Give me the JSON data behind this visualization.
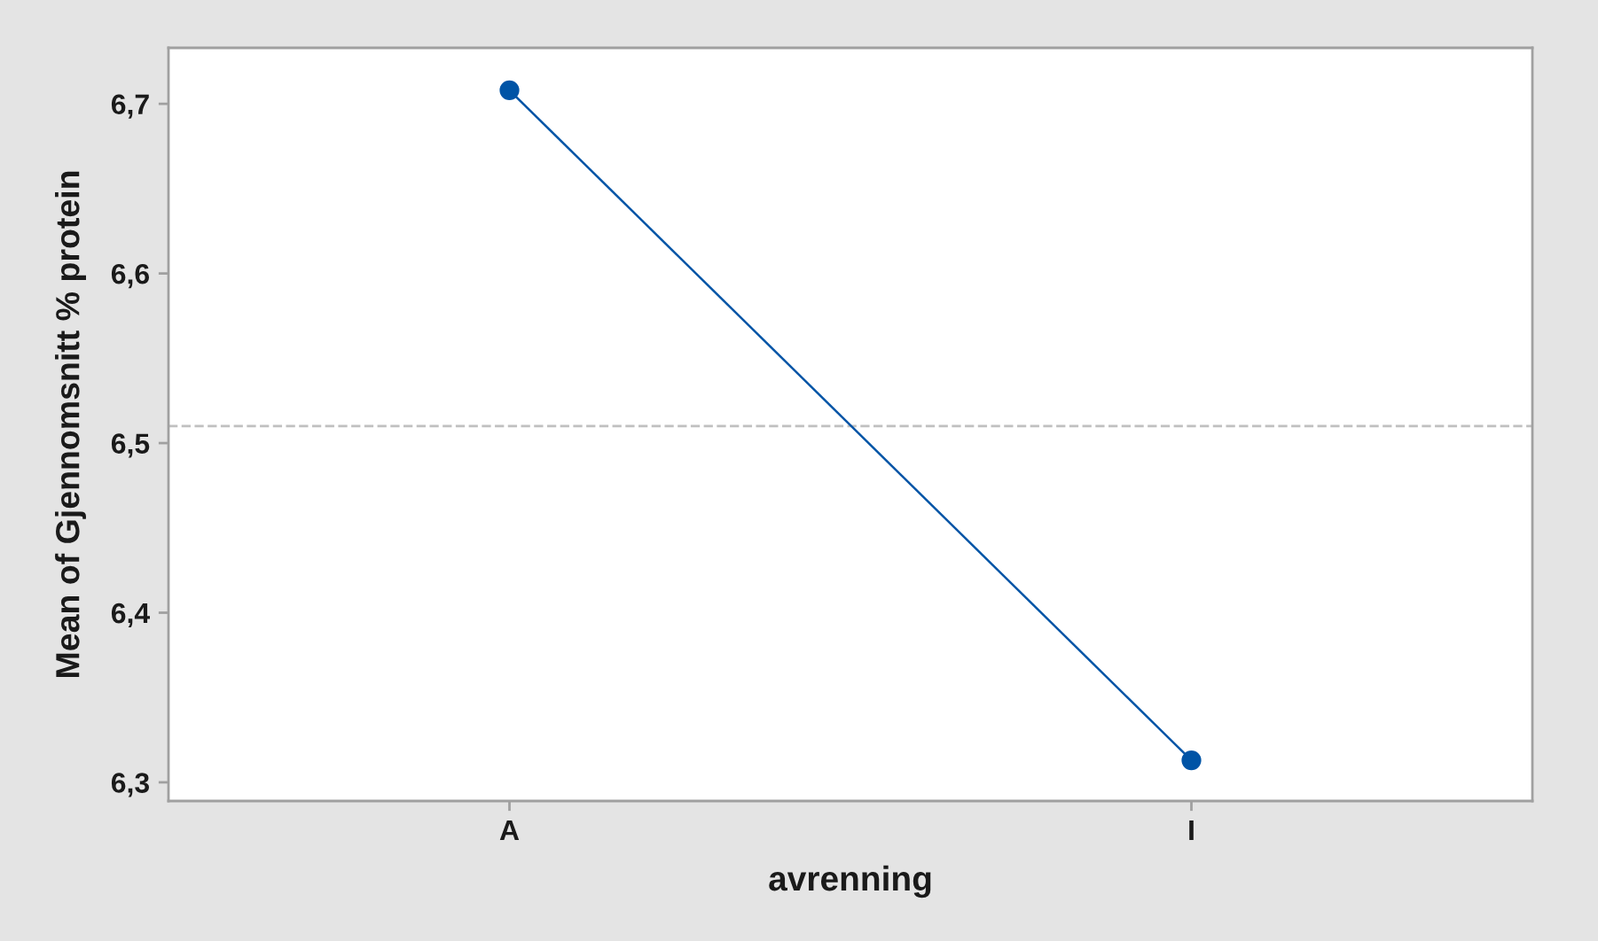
{
  "chart_data": {
    "type": "line",
    "xlabel": "avrenning",
    "ylabel": "Mean of Gjennomsnitt % protein",
    "categories": [
      "A",
      "I"
    ],
    "series": [
      {
        "color": "#0054a6",
        "values": [
          6.708,
          6.313
        ]
      }
    ],
    "ylim": [
      6.289,
      6.733
    ],
    "yticks": [
      {
        "value": 6.3,
        "label": "6,3"
      },
      {
        "value": 6.4,
        "label": "6,4"
      },
      {
        "value": 6.5,
        "label": "6,5"
      },
      {
        "value": 6.6,
        "label": "6,6"
      },
      {
        "value": 6.7,
        "label": "6,7"
      }
    ],
    "ref_lines": [
      {
        "axis": "y",
        "value": 6.51,
        "color": "#c0c0c0",
        "line_style": "dashed"
      }
    ],
    "marker": "circle",
    "line_style": "solid",
    "grid": false
  }
}
